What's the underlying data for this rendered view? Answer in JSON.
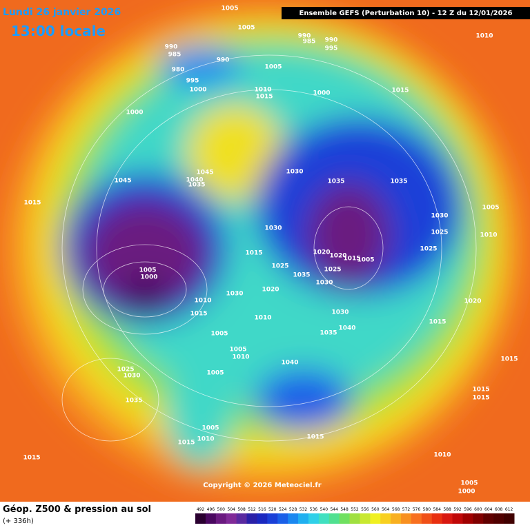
{
  "header": {
    "date": "Lundi 26 janvier 2026",
    "time": "13:00 locale",
    "model": "Ensemble GEFS  (Perturbation 10)  -  12 Z du 12/01/2026"
  },
  "copyright": "Copyright © 2026 Meteociel.fr",
  "footer": {
    "title": "Géop. Z500 & pression au sol",
    "lead": "(+ 336h)"
  },
  "isobars": [
    1005,
    1005,
    990,
    985,
    990,
    995,
    1010,
    990,
    985,
    980,
    990,
    1005,
    995,
    1000,
    1010,
    1015,
    1000,
    1015,
    1000,
    1030,
    1045,
    1045,
    1040,
    1035,
    1035,
    1035,
    1015,
    1005,
    1030,
    1030,
    1025,
    1010,
    1015,
    1020,
    1020,
    1015,
    1005,
    1025,
    1025,
    1025,
    1035,
    1030,
    1020,
    1005,
    1000,
    1030,
    1010,
    1020,
    1015,
    1010,
    1030,
    1040,
    1035,
    1015,
    1005,
    1005,
    1010,
    1040,
    1005,
    1025,
    1030,
    1035,
    1015,
    1015,
    1015,
    1005,
    1010,
    1015,
    1015,
    1015,
    1010,
    1005,
    1000
  ],
  "scale": {
    "labels": [
      492,
      496,
      500,
      504,
      508,
      512,
      516,
      520,
      524,
      528,
      532,
      536,
      540,
      544,
      548,
      552,
      556,
      560,
      564,
      568,
      572,
      576,
      580,
      584,
      588,
      592,
      596,
      600,
      604,
      608,
      612
    ],
    "colors": [
      "#2a0030",
      "#4a0860",
      "#6a1a80",
      "#802a98",
      "#5a2aa0",
      "#2a20a8",
      "#1a28c0",
      "#1a40d8",
      "#1a60e8",
      "#1a88f0",
      "#20b0f0",
      "#30d0e8",
      "#40e0c0",
      "#50e090",
      "#70e060",
      "#a0e040",
      "#c8e830",
      "#f0f020",
      "#f8d020",
      "#f8b020",
      "#f89020",
      "#f87020",
      "#f05018",
      "#e83010",
      "#d81810",
      "#c00808",
      "#a00000",
      "#800000",
      "#600000",
      "#500000",
      "#400000"
    ]
  }
}
